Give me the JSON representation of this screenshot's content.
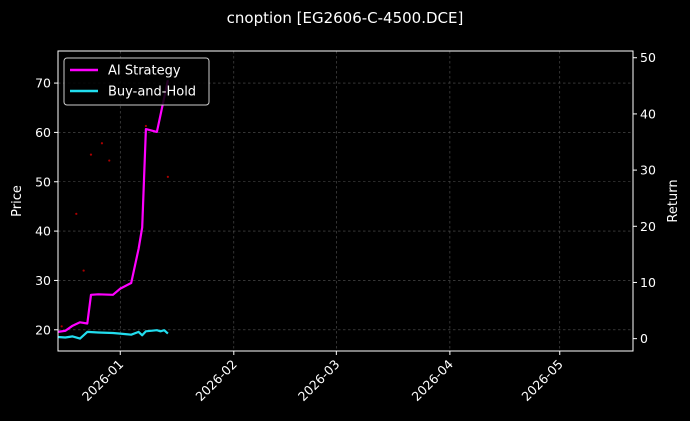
{
  "chart_data": {
    "type": "line",
    "title": "cnoption [EG2606-C-4500.DCE]",
    "ylabel": "Price",
    "y2label": "Return",
    "x_ticks": [
      "2026-01",
      "2026-02",
      "2026-03",
      "2026-04",
      "2026-05"
    ],
    "xlim": [
      "2025-12-15",
      "2026-05-21"
    ],
    "ylim": [
      15.7,
      76.5
    ],
    "y2lim": [
      -2.2,
      51.2
    ],
    "y_ticks": [
      20,
      30,
      40,
      50,
      60,
      70
    ],
    "y2_ticks": [
      0,
      10,
      20,
      30,
      40,
      50
    ],
    "grid": true,
    "legend_position": "top-left",
    "series": [
      {
        "name": "AI Strategy",
        "axis": "right",
        "color": "#ff00ff",
        "x": [
          "2025-12-15",
          "2025-12-17",
          "2025-12-19",
          "2025-12-21",
          "2025-12-23",
          "2025-12-24",
          "2025-12-26",
          "2025-12-30",
          "2026-01-01",
          "2026-01-04",
          "2026-01-06",
          "2026-01-07",
          "2026-01-08",
          "2026-01-11",
          "2026-01-14"
        ],
        "y": [
          1.2,
          1.4,
          2.3,
          2.9,
          2.7,
          7.8,
          7.9,
          7.8,
          8.9,
          9.9,
          16.0,
          19.8,
          37.3,
          36.8,
          46.0
        ]
      },
      {
        "name": "Buy-and-Hold",
        "axis": "right",
        "color": "#22ddee",
        "x": [
          "2025-12-15",
          "2025-12-17",
          "2025-12-19",
          "2025-12-21",
          "2025-12-23",
          "2025-12-26",
          "2025-12-30",
          "2026-01-01",
          "2026-01-04",
          "2026-01-06",
          "2026-01-07",
          "2026-01-08",
          "2026-01-11",
          "2026-01-12",
          "2026-01-13",
          "2026-01-14"
        ],
        "y": [
          0.3,
          0.2,
          0.4,
          0.0,
          1.2,
          1.1,
          1.0,
          0.9,
          0.7,
          1.2,
          0.6,
          1.3,
          1.5,
          1.3,
          1.5,
          0.9
        ]
      }
    ],
    "points": {
      "name": "Price",
      "axis": "left",
      "color": "#aa0000",
      "x": [
        "2025-12-16",
        "2025-12-20",
        "2025-12-22",
        "2025-12-24",
        "2025-12-27",
        "2025-12-29",
        "2026-01-08",
        "2026-01-14"
      ],
      "y": [
        20.7,
        43.5,
        32.0,
        55.5,
        57.8,
        54.3,
        61.3,
        51.0
      ]
    }
  }
}
